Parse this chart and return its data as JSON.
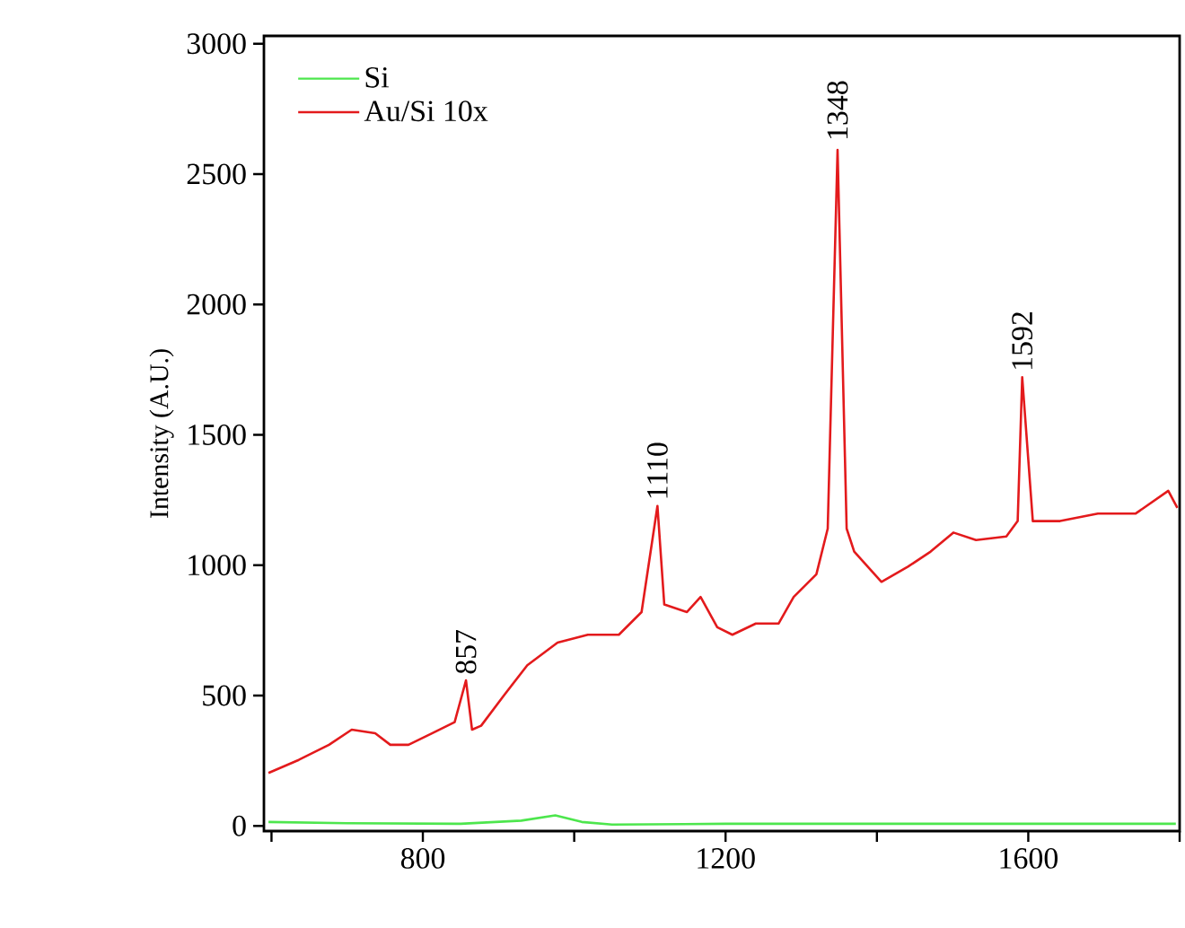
{
  "chart_data": {
    "type": "line",
    "ylabel": "Intensity (A.U.)",
    "xlim": [
      590,
      1800
    ],
    "ylim": [
      -20,
      3030
    ],
    "xticks": [
      {
        "value": 600,
        "label": null
      },
      800,
      {
        "value": 1000,
        "label": null
      },
      1200,
      {
        "value": 1400,
        "label": null
      },
      1600,
      {
        "value": 1800,
        "label": null
      }
    ],
    "yticks": [
      0,
      500,
      1000,
      1500,
      2000,
      2500,
      3000
    ],
    "legend": "top left",
    "grid": false,
    "marker": "none",
    "line_style": "solid",
    "series": [
      {
        "name": "Si",
        "color": "#4de64d",
        "x": [
          596,
          700,
          850,
          930,
          975,
          1010,
          1050,
          1200,
          1400,
          1600,
          1795
        ],
        "values": [
          15,
          10,
          8,
          20,
          40,
          15,
          5,
          8,
          8,
          8,
          8
        ]
      },
      {
        "name": "Au/Si 10x",
        "color": "#e31a1c",
        "x": [
          596,
          636,
          676,
          706,
          737,
          757,
          781,
          812,
          842,
          857,
          865,
          877,
          907,
          938,
          978,
          1018,
          1059,
          1089,
          1110,
          1119,
          1149,
          1167,
          1189,
          1209,
          1240,
          1270,
          1290,
          1320,
          1335,
          1348,
          1360,
          1370,
          1406,
          1441,
          1471,
          1501,
          1531,
          1571,
          1586,
          1592,
          1606,
          1642,
          1692,
          1742,
          1785,
          1797
        ],
        "values": [
          203,
          253,
          311,
          369,
          355,
          311,
          311,
          355,
          398,
          558,
          369,
          384,
          500,
          616,
          703,
          733,
          733,
          820,
          1227,
          849,
          820,
          878,
          762,
          733,
          776,
          776,
          878,
          965,
          1140,
          2593,
          1140,
          1052,
          936,
          994,
          1052,
          1125,
          1096,
          1110,
          1169,
          1721,
          1169,
          1169,
          1198,
          1198,
          1285,
          1220
        ]
      }
    ],
    "annotations": [
      {
        "text": "857",
        "x": 857,
        "y": 558
      },
      {
        "text": "1110",
        "x": 1110,
        "y": 1227
      },
      {
        "text": "1348",
        "x": 1348,
        "y": 2593
      },
      {
        "text": "1592",
        "x": 1592,
        "y": 1721
      }
    ]
  }
}
